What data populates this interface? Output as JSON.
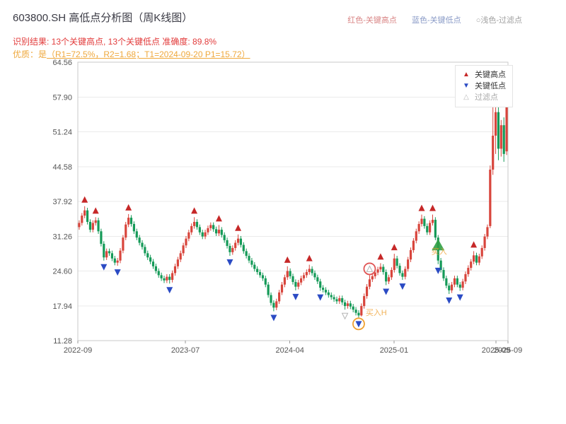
{
  "header": {
    "title": "603800.SH 高低点分析图（周K线图）",
    "legend_top": [
      {
        "label": "红色-关键高点",
        "color": "#d98585"
      },
      {
        "label": "蓝色-关键低点",
        "color": "#8a9bc7"
      },
      {
        "label": "○浅色-过滤点",
        "color": "#a0a0a0"
      }
    ],
    "result_line": "识别结果: 13个关键高点, 13个关键低点  准确度: 89.8%",
    "result_color": "#e23b3b",
    "quality_prefix": "优质：是",
    "quality_detail": "（R1=72.5%，R2=1.68；T1=2024-09-20 P1=15.72）",
    "quality_color": "#efa83c"
  },
  "legend_box": {
    "items": [
      {
        "glyph": "▲",
        "glyph_color": "#c62828",
        "label": "关键高点",
        "label_color": "#333333"
      },
      {
        "glyph": "▼",
        "glyph_color": "#2b4bc4",
        "label": "关键低点",
        "label_color": "#333333"
      },
      {
        "glyph": "△",
        "glyph_color": "#bbbbbb",
        "label": "过滤点",
        "label_color": "#aaaaaa"
      }
    ]
  },
  "chart_data": {
    "type": "candlestick",
    "title": "603800.SH 高低点分析图（周K线图）",
    "symbol": "603800.SH",
    "period": "weekly",
    "num_key_highs": 13,
    "num_key_lows": 13,
    "accuracy_pct": 89.8,
    "quality": {
      "R1": "72.5%",
      "R2": 1.68,
      "T1": "2024-09-20",
      "P1": 15.72
    },
    "y_range": [
      11.28,
      64.56
    ],
    "y_ticks": [
      64.56,
      57.9,
      51.24,
      44.58,
      37.92,
      31.26,
      24.6,
      17.94,
      11.28
    ],
    "x_ticks": [
      {
        "label": "2022-09",
        "pos": 0.0
      },
      {
        "label": "2023-07",
        "pos": 0.25
      },
      {
        "label": "2024-04",
        "pos": 0.493
      },
      {
        "label": "2025-01",
        "pos": 0.735
      },
      {
        "label": "2025-09",
        "pos": 0.972
      },
      {
        "label": "2025-09",
        "pos": 1.0
      }
    ],
    "up_color": "#d8453c",
    "down_color": "#159a58",
    "marker_high_color": "#c62828",
    "marker_low_color": "#2b4bc4",
    "filter_color": "#b5b5b5",
    "grid_color": "#ebebeb",
    "axis_color": "#c9c9c9",
    "candles": [
      [
        33.0,
        34.3,
        32.5,
        33.8
      ],
      [
        33.8,
        35.7,
        33.3,
        35.2
      ],
      [
        35.2,
        37.0,
        34.7,
        36.2
      ],
      [
        36.2,
        36.7,
        33.5,
        34.0
      ],
      [
        34.0,
        34.5,
        32.0,
        32.5
      ],
      [
        32.5,
        34.3,
        32.0,
        33.8
      ],
      [
        33.8,
        34.9,
        33.3,
        34.3
      ],
      [
        34.3,
        34.8,
        31.7,
        32.2
      ],
      [
        32.2,
        32.7,
        29.3,
        29.8
      ],
      [
        29.8,
        30.3,
        26.6,
        27.2
      ],
      [
        27.2,
        28.9,
        26.7,
        28.4
      ],
      [
        28.4,
        28.9,
        27.5,
        28.0
      ],
      [
        28.0,
        28.5,
        26.5,
        27.0
      ],
      [
        27.0,
        27.5,
        25.7,
        26.2
      ],
      [
        26.2,
        27.1,
        25.6,
        26.6
      ],
      [
        26.6,
        29.0,
        26.1,
        28.5
      ],
      [
        28.5,
        31.5,
        28.0,
        31.0
      ],
      [
        31.0,
        34.0,
        30.5,
        33.5
      ],
      [
        33.5,
        35.5,
        33.0,
        34.8
      ],
      [
        34.8,
        35.3,
        33.1,
        33.6
      ],
      [
        33.6,
        34.1,
        31.7,
        32.2
      ],
      [
        32.2,
        32.7,
        30.5,
        31.0
      ],
      [
        31.0,
        31.5,
        29.5,
        30.0
      ],
      [
        30.0,
        30.5,
        28.7,
        29.2
      ],
      [
        29.2,
        29.7,
        27.5,
        28.0
      ],
      [
        28.0,
        28.5,
        26.7,
        27.2
      ],
      [
        27.2,
        27.7,
        25.9,
        26.4
      ],
      [
        26.4,
        26.9,
        25.0,
        25.5
      ],
      [
        25.5,
        26.0,
        24.1,
        24.6
      ],
      [
        24.6,
        25.1,
        23.3,
        23.8
      ],
      [
        23.8,
        24.3,
        22.7,
        23.2
      ],
      [
        23.2,
        23.7,
        22.3,
        22.8
      ],
      [
        22.8,
        24.0,
        22.3,
        23.5
      ],
      [
        23.5,
        24.0,
        22.2,
        22.9
      ],
      [
        22.9,
        24.7,
        22.4,
        24.2
      ],
      [
        24.2,
        26.0,
        23.7,
        25.5
      ],
      [
        25.5,
        27.3,
        25.0,
        26.8
      ],
      [
        26.8,
        28.5,
        26.3,
        28.0
      ],
      [
        28.0,
        30.0,
        27.5,
        29.5
      ],
      [
        29.5,
        31.3,
        29.0,
        30.8
      ],
      [
        30.8,
        32.5,
        30.3,
        32.0
      ],
      [
        32.0,
        33.7,
        31.5,
        33.2
      ],
      [
        33.2,
        34.9,
        32.7,
        34.0
      ],
      [
        34.0,
        34.5,
        32.5,
        33.0
      ],
      [
        33.0,
        33.5,
        31.5,
        32.0
      ],
      [
        32.0,
        32.5,
        30.7,
        31.2
      ],
      [
        31.2,
        32.5,
        30.7,
        32.0
      ],
      [
        32.0,
        33.3,
        31.5,
        32.8
      ],
      [
        32.8,
        33.9,
        32.3,
        33.4
      ],
      [
        33.4,
        33.9,
        32.1,
        32.6
      ],
      [
        32.6,
        33.1,
        31.3,
        31.8
      ],
      [
        31.8,
        33.4,
        31.3,
        32.5
      ],
      [
        32.5,
        33.0,
        31.0,
        31.5
      ],
      [
        31.5,
        32.0,
        30.0,
        30.5
      ],
      [
        30.5,
        31.0,
        28.9,
        29.4
      ],
      [
        29.4,
        29.9,
        27.5,
        28.2
      ],
      [
        28.2,
        29.5,
        27.7,
        29.0
      ],
      [
        29.0,
        30.5,
        28.5,
        30.0
      ],
      [
        30.0,
        31.6,
        29.5,
        30.8
      ],
      [
        30.8,
        31.3,
        29.1,
        29.6
      ],
      [
        29.6,
        30.1,
        27.9,
        28.4
      ],
      [
        28.4,
        28.9,
        27.0,
        27.5
      ],
      [
        27.5,
        28.0,
        26.1,
        26.6
      ],
      [
        26.6,
        27.1,
        25.3,
        25.8
      ],
      [
        25.8,
        26.3,
        24.5,
        25.0
      ],
      [
        25.0,
        25.5,
        23.9,
        24.4
      ],
      [
        24.4,
        24.9,
        23.3,
        23.8
      ],
      [
        23.8,
        24.3,
        22.7,
        23.2
      ],
      [
        23.2,
        23.7,
        21.5,
        22.0
      ],
      [
        22.0,
        22.5,
        19.5,
        20.0
      ],
      [
        20.0,
        20.5,
        18.0,
        18.5
      ],
      [
        18.5,
        19.0,
        16.9,
        17.6
      ],
      [
        17.6,
        19.3,
        17.1,
        18.8
      ],
      [
        18.8,
        21.0,
        18.3,
        20.5
      ],
      [
        20.5,
        22.5,
        20.0,
        22.0
      ],
      [
        22.0,
        23.9,
        21.5,
        23.4
      ],
      [
        23.4,
        25.5,
        22.9,
        24.6
      ],
      [
        24.6,
        25.1,
        23.1,
        23.6
      ],
      [
        23.6,
        24.1,
        22.0,
        22.5
      ],
      [
        22.5,
        23.0,
        20.9,
        21.6
      ],
      [
        21.6,
        22.9,
        21.1,
        22.4
      ],
      [
        22.4,
        23.7,
        21.9,
        23.2
      ],
      [
        23.2,
        24.3,
        22.7,
        23.8
      ],
      [
        23.8,
        24.9,
        23.3,
        24.4
      ],
      [
        24.4,
        25.8,
        23.9,
        25.0
      ],
      [
        25.0,
        25.5,
        23.7,
        24.2
      ],
      [
        24.2,
        24.7,
        22.9,
        23.4
      ],
      [
        23.4,
        23.9,
        22.1,
        22.6
      ],
      [
        22.6,
        23.1,
        20.8,
        21.4
      ],
      [
        21.4,
        21.9,
        20.5,
        21.0
      ],
      [
        21.0,
        21.5,
        20.0,
        20.5
      ],
      [
        20.5,
        21.0,
        19.5,
        20.0
      ],
      [
        20.0,
        20.5,
        19.1,
        19.6
      ],
      [
        19.6,
        20.1,
        18.7,
        19.2
      ],
      [
        19.2,
        19.7,
        18.3,
        18.8
      ],
      [
        18.8,
        19.9,
        18.3,
        19.4
      ],
      [
        19.4,
        19.9,
        18.1,
        18.6
      ],
      [
        18.6,
        19.1,
        17.2,
        17.9
      ],
      [
        17.9,
        18.9,
        17.4,
        18.4
      ],
      [
        18.4,
        18.9,
        17.3,
        17.8
      ],
      [
        17.8,
        18.3,
        16.7,
        17.2
      ],
      [
        17.2,
        17.7,
        16.1,
        16.6
      ],
      [
        16.6,
        17.1,
        15.7,
        16.1
      ],
      [
        16.1,
        18.4,
        15.9,
        17.9
      ],
      [
        17.9,
        20.3,
        17.4,
        19.8
      ],
      [
        19.8,
        22.1,
        19.3,
        21.6
      ],
      [
        21.6,
        23.8,
        21.1,
        23.0
      ],
      [
        23.0,
        24.1,
        22.5,
        23.6
      ],
      [
        23.6,
        24.8,
        23.1,
        24.3
      ],
      [
        24.3,
        25.4,
        23.8,
        24.9
      ],
      [
        24.9,
        26.1,
        24.4,
        25.4
      ],
      [
        25.4,
        25.9,
        23.9,
        24.4
      ],
      [
        24.4,
        24.9,
        21.9,
        22.6
      ],
      [
        22.6,
        23.9,
        22.1,
        23.4
      ],
      [
        23.4,
        25.3,
        22.9,
        24.8
      ],
      [
        24.8,
        27.9,
        24.3,
        27.0
      ],
      [
        27.0,
        27.5,
        25.1,
        25.6
      ],
      [
        25.6,
        26.1,
        23.7,
        24.2
      ],
      [
        24.2,
        24.7,
        22.9,
        23.5
      ],
      [
        23.5,
        25.5,
        23.0,
        25.0
      ],
      [
        25.0,
        27.3,
        24.5,
        26.8
      ],
      [
        26.8,
        29.1,
        26.3,
        28.6
      ],
      [
        28.6,
        30.9,
        28.1,
        30.4
      ],
      [
        30.4,
        32.7,
        29.9,
        32.2
      ],
      [
        32.2,
        34.1,
        31.7,
        33.6
      ],
      [
        33.6,
        35.4,
        33.1,
        34.6
      ],
      [
        34.6,
        35.1,
        32.7,
        33.2
      ],
      [
        33.2,
        33.7,
        31.5,
        32.0
      ],
      [
        32.0,
        34.3,
        31.5,
        33.8
      ],
      [
        33.8,
        35.4,
        33.3,
        34.4
      ],
      [
        34.4,
        34.9,
        30.5,
        31.0
      ],
      [
        31.0,
        31.5,
        25.9,
        26.6
      ],
      [
        26.6,
        27.1,
        24.3,
        24.8
      ],
      [
        24.8,
        25.3,
        22.7,
        23.2
      ],
      [
        23.2,
        23.7,
        21.3,
        21.8
      ],
      [
        21.8,
        22.3,
        20.2,
        20.9
      ],
      [
        20.9,
        22.5,
        20.4,
        22.0
      ],
      [
        22.0,
        23.7,
        21.5,
        23.2
      ],
      [
        23.2,
        23.7,
        21.5,
        22.0
      ],
      [
        22.0,
        22.5,
        20.8,
        21.4
      ],
      [
        21.4,
        23.1,
        20.9,
        22.6
      ],
      [
        22.6,
        24.5,
        22.1,
        24.0
      ],
      [
        24.0,
        25.7,
        23.5,
        25.2
      ],
      [
        25.2,
        26.9,
        24.7,
        26.4
      ],
      [
        26.4,
        28.4,
        25.9,
        27.6
      ],
      [
        27.6,
        28.1,
        25.7,
        26.2
      ],
      [
        26.2,
        27.9,
        25.7,
        27.4
      ],
      [
        27.4,
        29.5,
        26.9,
        29.0
      ],
      [
        29.0,
        31.7,
        28.5,
        31.2
      ],
      [
        31.2,
        33.5,
        30.7,
        33.0
      ],
      [
        33.2,
        44.8,
        32.8,
        44.0
      ],
      [
        44.0,
        57.5,
        43.0,
        50.5
      ],
      [
        50.5,
        60.0,
        47.0,
        55.0
      ],
      [
        55.0,
        56.0,
        45.8,
        48.0
      ],
      [
        48.0,
        53.5,
        46.5,
        52.5
      ],
      [
        52.5,
        54.0,
        45.5,
        47.0
      ],
      [
        47.5,
        61.5,
        46.8,
        59.8
      ]
    ],
    "key_highs": [
      2,
      6,
      18,
      42,
      51,
      58,
      76,
      84,
      110,
      115,
      125,
      129,
      144
    ],
    "key_lows": [
      9,
      14,
      33,
      55,
      71,
      79,
      88,
      102,
      112,
      118,
      131,
      135,
      139
    ],
    "filter_points": [
      {
        "index": 97,
        "side": "low"
      },
      {
        "index": 106,
        "side": "high"
      }
    ],
    "circled": [
      {
        "index": 102,
        "side": "low",
        "color": "#f0a030"
      },
      {
        "index": 106,
        "side": "high",
        "color": "#e05555"
      }
    ],
    "signal_triangle": {
      "index": 131,
      "price": 29.5,
      "color": "#2f9e44"
    },
    "annotations": [
      {
        "index": 103,
        "price": 16.7,
        "text": "买入H",
        "color": "#f0a030"
      },
      {
        "index": 127,
        "price": 28.4,
        "text": "买入",
        "color": "#f0a030"
      }
    ]
  }
}
